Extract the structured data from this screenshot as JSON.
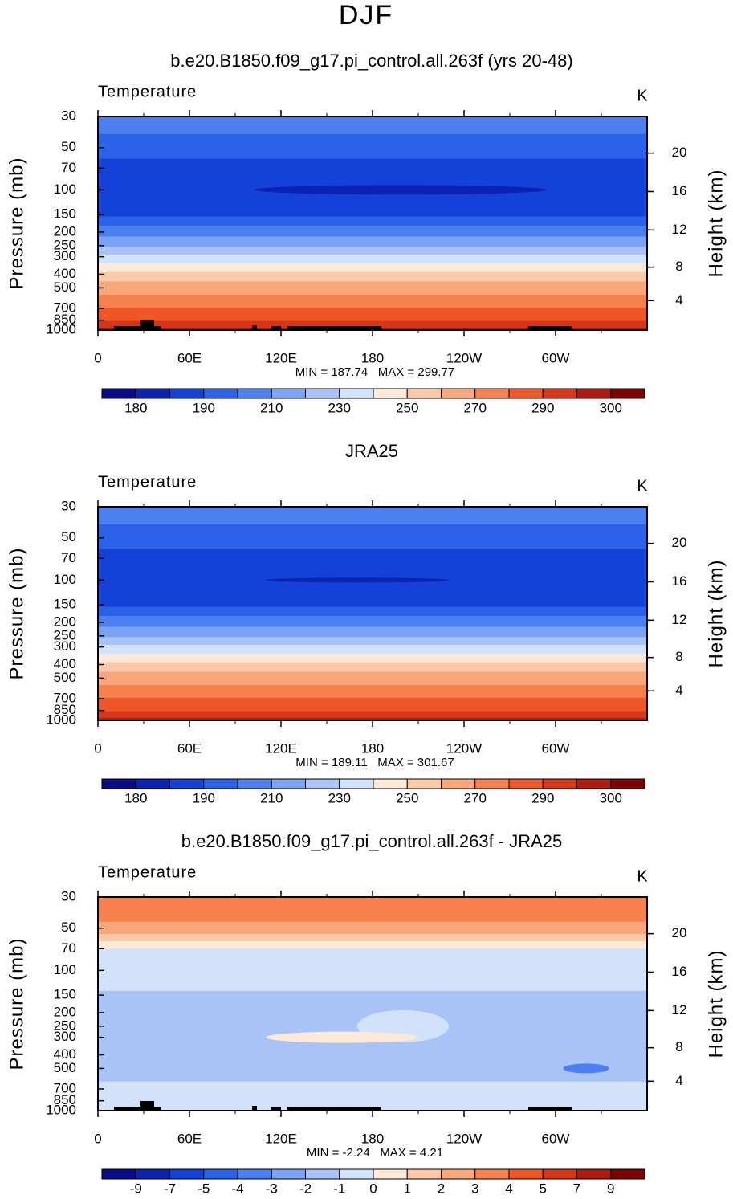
{
  "title": "DJF",
  "panels": [
    {
      "title": "b.e20.B1850.f09_g17.pi_control.all.263f (yrs 20-48)",
      "variable": "Temperature",
      "units": "K",
      "ylabel": "Pressure (mb)",
      "y2label": "Height (km)",
      "ylim": [
        1000,
        30
      ],
      "log_y": true,
      "yticks": [
        30,
        50,
        70,
        100,
        150,
        200,
        250,
        300,
        400,
        500,
        700,
        850,
        1000
      ],
      "y2ticks": [
        20,
        16,
        12,
        8,
        4
      ],
      "xlim": [
        0,
        360
      ],
      "xticks": [
        0,
        {
          "value": 60,
          "label": "60E"
        },
        {
          "value": 120,
          "label": "120E"
        },
        180,
        {
          "value": 240,
          "label": "120W"
        },
        {
          "value": 300,
          "label": "60W"
        }
      ],
      "min_label": "MIN =",
      "min": 187.74,
      "max_label": "MAX =",
      "max": 299.77,
      "colorbar": {
        "colors": [
          "#0b0a8a",
          "#0c22b0",
          "#1442d8",
          "#2c62e8",
          "#4c80f0",
          "#7ba2f4",
          "#a9c3f7",
          "#d2e2fb",
          "#fde9d8",
          "#fcc9a8",
          "#f9a67a",
          "#f6814f",
          "#ef5628",
          "#d6371a",
          "#ae1c10",
          "#7e0303"
        ],
        "ticks": [
          180,
          190,
          210,
          230,
          250,
          270,
          290,
          300
        ]
      }
    },
    {
      "title": "JRA25",
      "variable": "Temperature",
      "units": "K",
      "ylabel": "Pressure (mb)",
      "y2label": "Height (km)",
      "ylim": [
        1000,
        30
      ],
      "log_y": true,
      "yticks": [
        30,
        50,
        70,
        100,
        150,
        200,
        250,
        300,
        400,
        500,
        700,
        850,
        1000
      ],
      "y2ticks": [
        20,
        16,
        12,
        8,
        4
      ],
      "xlim": [
        0,
        360
      ],
      "xticks": [
        0,
        {
          "value": 60,
          "label": "60E"
        },
        {
          "value": 120,
          "label": "120E"
        },
        180,
        {
          "value": 240,
          "label": "120W"
        },
        {
          "value": 300,
          "label": "60W"
        }
      ],
      "min_label": "MIN =",
      "min": 189.11,
      "max_label": "MAX =",
      "max": 301.67,
      "colorbar": {
        "colors": [
          "#0b0a8a",
          "#0c22b0",
          "#1442d8",
          "#2c62e8",
          "#4c80f0",
          "#7ba2f4",
          "#a9c3f7",
          "#d2e2fb",
          "#fde9d8",
          "#fcc9a8",
          "#f9a67a",
          "#f6814f",
          "#ef5628",
          "#d6371a",
          "#ae1c10",
          "#7e0303"
        ],
        "ticks": [
          180,
          190,
          210,
          230,
          250,
          270,
          290,
          300
        ]
      }
    },
    {
      "title": "b.e20.B1850.f09_g17.pi_control.all.263f - JRA25",
      "variable": "Temperature",
      "units": "K",
      "ylabel": "Pressure (mb)",
      "y2label": "Height (km)",
      "ylim": [
        1000,
        30
      ],
      "log_y": true,
      "yticks": [
        30,
        50,
        70,
        100,
        150,
        200,
        250,
        300,
        400,
        500,
        700,
        850,
        1000
      ],
      "y2ticks": [
        20,
        16,
        12,
        8,
        4
      ],
      "xlim": [
        0,
        360
      ],
      "xticks": [
        0,
        {
          "value": 60,
          "label": "60E"
        },
        {
          "value": 120,
          "label": "120E"
        },
        180,
        {
          "value": 240,
          "label": "120W"
        },
        {
          "value": 300,
          "label": "60W"
        }
      ],
      "min_label": "MIN =",
      "min": -2.24,
      "max_label": "MAX =",
      "max": 4.21,
      "colorbar": {
        "colors": [
          "#0b0a8a",
          "#0c22b0",
          "#1442d8",
          "#2c62e8",
          "#4c80f0",
          "#7ba2f4",
          "#a9c3f7",
          "#d2e2fb",
          "#fde9d8",
          "#fcc9a8",
          "#f9a67a",
          "#f6814f",
          "#ef5628",
          "#d6371a",
          "#ae1c10",
          "#7e0303"
        ],
        "ticks": [
          -9,
          -7,
          -5,
          -4,
          -3,
          -2,
          -1,
          0,
          1,
          2,
          3,
          4,
          5,
          7,
          9
        ]
      }
    }
  ]
}
